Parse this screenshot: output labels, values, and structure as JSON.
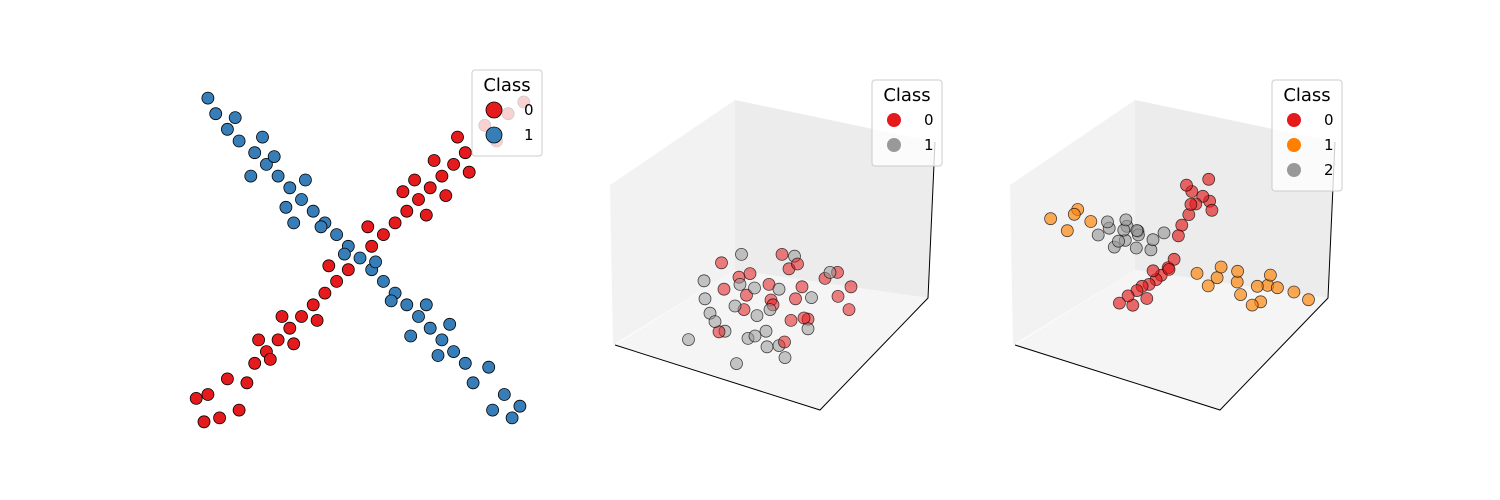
{
  "chart_data": [
    {
      "type": "scatter",
      "projection": "2d",
      "axes_visible": false,
      "legend": {
        "title": "Class",
        "placement": "top-right",
        "entries": [
          {
            "label": "0",
            "color": "#e41a1c"
          },
          {
            "label": "1",
            "color": "#377eb8"
          }
        ]
      },
      "series": [
        {
          "name": "0",
          "color": "#e41a1c",
          "points": [
            [
              1.35,
              1.35
            ],
            [
              1.2,
              1.2
            ],
            [
              1.05,
              1.05
            ],
            [
              0.9,
              0.9
            ],
            [
              0.75,
              0.75
            ],
            [
              0.6,
              0.6
            ],
            [
              0.45,
              0.45
            ],
            [
              0.3,
              0.3
            ],
            [
              0.15,
              0.15
            ],
            [
              -0.15,
              -0.15
            ],
            [
              -0.3,
              -0.3
            ],
            [
              -0.45,
              -0.45
            ],
            [
              -0.6,
              -0.6
            ],
            [
              -0.75,
              -0.75
            ],
            [
              -0.9,
              -0.9
            ],
            [
              -1.05,
              -1.05
            ],
            [
              -1.2,
              -1.2
            ],
            [
              -1.35,
              -1.35
            ],
            [
              1.9,
              1.85
            ],
            [
              2.1,
              2.0
            ],
            [
              1.6,
              1.7
            ],
            [
              1.4,
              1.1
            ],
            [
              0.95,
              1.25
            ],
            [
              -1.45,
              -1.6
            ],
            [
              -1.7,
              -1.55
            ],
            [
              -1.95,
              -1.75
            ],
            [
              -1.55,
              -1.95
            ],
            [
              -2.1,
              -1.8
            ],
            [
              -1.15,
              -1.3
            ],
            [
              -0.85,
              -1.1
            ],
            [
              0.85,
              0.55
            ],
            [
              0.7,
              1.0
            ],
            [
              1.1,
              0.8
            ],
            [
              -2.0,
              -2.1
            ],
            [
              -1.8,
              -2.05
            ],
            [
              1.75,
              1.5
            ],
            [
              0.55,
              0.85
            ],
            [
              -0.55,
              -0.8
            ],
            [
              -0.4,
              -0.1
            ],
            [
              0.1,
              0.4
            ],
            [
              -1.0,
              -0.75
            ],
            [
              1.25,
              1.55
            ],
            [
              -1.3,
              -1.05
            ]
          ]
        },
        {
          "name": "1",
          "color": "#377eb8",
          "points": [
            [
              -1.35,
              1.35
            ],
            [
              -1.2,
              1.2
            ],
            [
              -1.05,
              1.05
            ],
            [
              -0.9,
              0.9
            ],
            [
              -0.75,
              0.75
            ],
            [
              -0.6,
              0.6
            ],
            [
              -0.45,
              0.45
            ],
            [
              -0.3,
              0.3
            ],
            [
              -0.15,
              0.15
            ],
            [
              0.0,
              0.0
            ],
            [
              0.15,
              -0.15
            ],
            [
              0.3,
              -0.3
            ],
            [
              0.45,
              -0.45
            ],
            [
              0.6,
              -0.6
            ],
            [
              0.75,
              -0.75
            ],
            [
              0.9,
              -0.9
            ],
            [
              1.05,
              -1.05
            ],
            [
              1.2,
              -1.2
            ],
            [
              1.35,
              -1.35
            ],
            [
              -1.95,
              2.05
            ],
            [
              -1.85,
              1.85
            ],
            [
              -1.7,
              1.65
            ],
            [
              -1.55,
              1.5
            ],
            [
              -1.4,
              1.05
            ],
            [
              -1.1,
              1.3
            ],
            [
              -0.95,
              0.65
            ],
            [
              -0.7,
              1.0
            ],
            [
              -0.5,
              0.4
            ],
            [
              0.4,
              -0.55
            ],
            [
              0.85,
              -0.6
            ],
            [
              1.0,
              -1.25
            ],
            [
              1.45,
              -1.6
            ],
            [
              1.65,
              -1.4
            ],
            [
              1.85,
              -1.75
            ],
            [
              2.05,
              -1.9
            ],
            [
              1.95,
              -2.05
            ],
            [
              1.7,
              -1.95
            ],
            [
              -1.25,
              1.55
            ],
            [
              -0.2,
              0.05
            ],
            [
              0.2,
              -0.05
            ],
            [
              1.15,
              -0.85
            ],
            [
              -1.6,
              1.8
            ],
            [
              0.65,
              -1.0
            ],
            [
              -0.85,
              0.45
            ]
          ]
        }
      ]
    },
    {
      "type": "scatter",
      "projection": "3d",
      "axes_visible": false,
      "legend": {
        "title": "Class",
        "placement": "top-right",
        "entries": [
          {
            "label": "0",
            "color": "#e41a1c"
          },
          {
            "label": "1",
            "color": "#999999"
          }
        ]
      },
      "series": [
        {
          "name": "0",
          "color": "#e41a1c",
          "points": [
            [
              0.1,
              0.2,
              0.3
            ],
            [
              0.4,
              -0.1,
              0.2
            ],
            [
              -0.2,
              0.3,
              -0.1
            ],
            [
              0.6,
              0.1,
              -0.3
            ],
            [
              0.3,
              0.5,
              0.1
            ],
            [
              -0.4,
              -0.2,
              0.4
            ],
            [
              0.8,
              -0.3,
              0.0
            ],
            [
              0.2,
              -0.5,
              -0.4
            ],
            [
              -0.1,
              0.6,
              0.5
            ],
            [
              0.5,
              0.4,
              0.6
            ],
            [
              -0.6,
              0.1,
              0.2
            ],
            [
              0.9,
              0.2,
              0.4
            ],
            [
              0.0,
              -0.3,
              0.7
            ],
            [
              0.7,
              0.7,
              -0.2
            ],
            [
              -0.3,
              -0.6,
              -0.2
            ],
            [
              1.1,
              -0.1,
              0.2
            ],
            [
              0.45,
              0.15,
              0.05
            ],
            [
              0.25,
              -0.25,
              0.55
            ],
            [
              -0.5,
              0.4,
              -0.45
            ],
            [
              1.3,
              0.3,
              -0.1
            ],
            [
              0.15,
              0.85,
              0.25
            ],
            [
              0.65,
              -0.55,
              0.35
            ],
            [
              -0.75,
              -0.1,
              0.6
            ],
            [
              0.35,
              0.25,
              -0.65
            ]
          ]
        },
        {
          "name": "1",
          "color": "#999999",
          "points": [
            [
              -0.3,
              -0.2,
              -0.3
            ],
            [
              -0.1,
              -0.4,
              0.1
            ],
            [
              -0.5,
              0.0,
              -0.1
            ],
            [
              0.0,
              0.1,
              -0.5
            ],
            [
              -0.6,
              -0.3,
              0.2
            ],
            [
              -0.2,
              0.2,
              -0.6
            ],
            [
              -0.8,
              0.1,
              -0.2
            ],
            [
              -0.4,
              -0.7,
              -0.3
            ],
            [
              0.2,
              -0.6,
              -0.6
            ],
            [
              -0.7,
              0.4,
              0.1
            ],
            [
              -0.1,
              -0.1,
              -0.8
            ],
            [
              -0.9,
              -0.2,
              -0.4
            ],
            [
              0.3,
              0.3,
              -0.7
            ],
            [
              -0.5,
              -0.5,
              -0.7
            ],
            [
              0.4,
              -0.8,
              0.3
            ],
            [
              -0.3,
              0.6,
              -0.4
            ],
            [
              -1.0,
              -0.1,
              0.3
            ],
            [
              0.1,
              -0.2,
              -1.0
            ],
            [
              -0.65,
              -0.75,
              0.05
            ],
            [
              0.55,
              0.35,
              0.8
            ],
            [
              -0.15,
              0.45,
              0.85
            ],
            [
              -0.85,
              0.55,
              -0.55
            ],
            [
              0.05,
              -0.95,
              -0.15
            ],
            [
              -0.45,
              0.05,
              -1.05
            ]
          ]
        }
      ]
    },
    {
      "type": "scatter",
      "projection": "3d",
      "axes_visible": false,
      "legend": {
        "title": "Class",
        "placement": "top-right",
        "entries": [
          {
            "label": "0",
            "color": "#e41a1c"
          },
          {
            "label": "1",
            "color": "#ff7f00"
          },
          {
            "label": "2",
            "color": "#999999"
          }
        ]
      },
      "series": [
        {
          "name": "0",
          "color": "#e41a1c",
          "points": [
            [
              0.2,
              0.2,
              0.6
            ],
            [
              0.35,
              0.3,
              0.8
            ],
            [
              0.5,
              0.4,
              1.0
            ],
            [
              0.65,
              0.5,
              1.15
            ],
            [
              0.3,
              0.15,
              0.95
            ],
            [
              0.55,
              0.6,
              1.25
            ],
            [
              0.75,
              0.45,
              0.9
            ],
            [
              0.45,
              0.55,
              1.35
            ],
            [
              -0.2,
              -0.2,
              -0.2
            ],
            [
              -0.35,
              -0.3,
              -0.35
            ],
            [
              -0.5,
              -0.45,
              -0.45
            ],
            [
              -0.65,
              -0.55,
              -0.55
            ],
            [
              -0.8,
              -0.65,
              -0.6
            ],
            [
              -0.95,
              -0.8,
              -0.7
            ],
            [
              -0.55,
              -0.3,
              -0.75
            ],
            [
              -0.4,
              -0.6,
              -0.3
            ],
            [
              -1.1,
              -0.85,
              -0.8
            ],
            [
              -0.7,
              -0.75,
              -0.35
            ],
            [
              0.1,
              0.1,
              0.4
            ],
            [
              0.85,
              0.7,
              1.1
            ],
            [
              -1.3,
              -1.0,
              -0.95
            ],
            [
              -0.25,
              -0.45,
              -0.1
            ],
            [
              0.6,
              0.25,
              1.4
            ],
            [
              -0.85,
              -0.5,
              -0.9
            ]
          ]
        },
        {
          "name": "1",
          "color": "#ff7f00",
          "points": [
            [
              0.2,
              -0.2,
              -0.3
            ],
            [
              0.4,
              -0.35,
              -0.4
            ],
            [
              0.6,
              -0.5,
              -0.5
            ],
            [
              0.8,
              -0.65,
              -0.6
            ],
            [
              1.0,
              -0.8,
              -0.65
            ],
            [
              0.7,
              -0.4,
              -0.7
            ],
            [
              0.5,
              -0.7,
              -0.35
            ],
            [
              0.9,
              -0.55,
              -0.85
            ],
            [
              1.15,
              -0.95,
              -0.75
            ],
            [
              0.35,
              -0.55,
              -0.25
            ],
            [
              -0.8,
              0.7,
              0.75
            ],
            [
              -0.95,
              0.85,
              0.9
            ],
            [
              -1.1,
              0.75,
              0.6
            ],
            [
              -0.85,
              0.95,
              1.0
            ],
            [
              1.3,
              -1.05,
              -0.9
            ],
            [
              0.65,
              -0.8,
              -0.95
            ],
            [
              1.05,
              -0.45,
              -0.55
            ],
            [
              -1.2,
              1.0,
              0.85
            ],
            [
              0.25,
              -0.4,
              -0.55
            ],
            [
              0.85,
              -0.9,
              -0.45
            ]
          ]
        },
        {
          "name": "2",
          "color": "#999999",
          "points": [
            [
              -0.2,
              0.2,
              0.35
            ],
            [
              -0.35,
              0.3,
              0.45
            ],
            [
              -0.5,
              0.4,
              0.55
            ],
            [
              -0.65,
              0.5,
              0.6
            ],
            [
              -0.4,
              0.55,
              0.4
            ],
            [
              -0.55,
              0.25,
              0.7
            ],
            [
              -0.3,
              0.45,
              0.25
            ],
            [
              -0.75,
              0.6,
              0.5
            ],
            [
              -0.15,
              0.35,
              0.2
            ],
            [
              -0.6,
              0.35,
              0.35
            ],
            [
              -0.45,
              0.15,
              0.5
            ],
            [
              -0.25,
              0.5,
              0.55
            ],
            [
              -0.7,
              0.45,
              0.7
            ],
            [
              -0.35,
              0.6,
              0.65
            ],
            [
              -0.5,
              0.65,
              0.3
            ],
            [
              -0.1,
              0.1,
              0.45
            ]
          ]
        }
      ]
    }
  ]
}
